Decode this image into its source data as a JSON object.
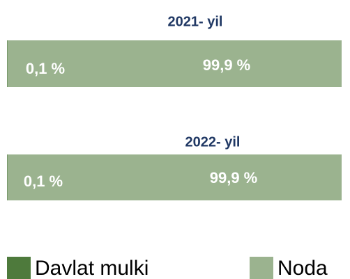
{
  "chart_data": {
    "type": "stacked-hbar",
    "categories": [
      "2021- yil",
      "2022- yil"
    ],
    "xlim": [
      0,
      100
    ],
    "series": [
      {
        "name": "Davlat mulki",
        "color": "#4e7a3c",
        "values": [
          0.1,
          0.1
        ],
        "value_labels": [
          "0,1 %",
          "0,1 %"
        ]
      },
      {
        "name": "Noda",
        "color": "#9bb38f",
        "values": [
          99.9,
          99.9
        ],
        "value_labels": [
          "99,9 %",
          "99,9 %"
        ]
      }
    ]
  }
}
